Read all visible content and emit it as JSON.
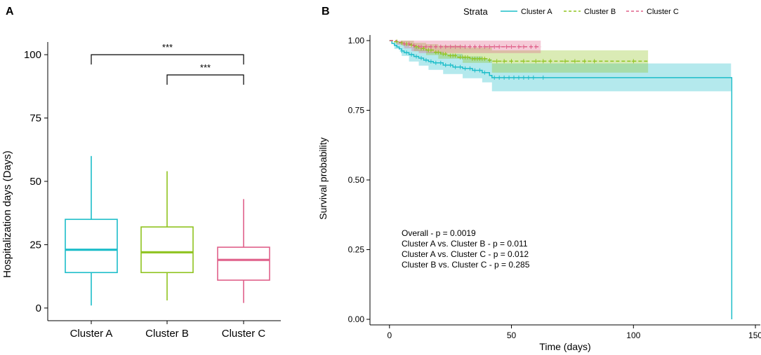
{
  "colors": {
    "a": "#1CBDC9",
    "b": "#8FC31F",
    "c": "#E0608A",
    "axis": "#000000"
  },
  "chart_data": [
    {
      "panel": "A",
      "type": "box",
      "title": "",
      "ylabel": "Hospitalization days (Days)",
      "xlabel": "",
      "ylim": [
        -5,
        105
      ],
      "yticks": [
        0,
        25,
        50,
        75,
        100
      ],
      "ytick_labels": [
        "0",
        "25",
        "50",
        "75",
        "100"
      ],
      "categories": [
        "Cluster A",
        "Cluster B",
        "Cluster C"
      ],
      "boxes": [
        {
          "name": "Cluster A",
          "min": 1,
          "q1": 14,
          "median": 23,
          "q3": 35,
          "max": 60
        },
        {
          "name": "Cluster B",
          "min": 3,
          "q1": 14,
          "median": 22,
          "q3": 32,
          "max": 54
        },
        {
          "name": "Cluster C",
          "min": 2,
          "q1": 11,
          "median": 19,
          "q3": 24,
          "max": 43
        }
      ],
      "significance": [
        {
          "from": "Cluster A",
          "to": "Cluster C",
          "y": 100,
          "label": "***"
        },
        {
          "from": "Cluster B",
          "to": "Cluster C",
          "y": 92,
          "label": "***"
        }
      ]
    },
    {
      "panel": "B",
      "type": "line",
      "subtype": "kaplan-meier",
      "xlabel": "Time (days)",
      "ylabel": "Survival probability",
      "xlim": [
        -8,
        152
      ],
      "ylim": [
        -0.02,
        1.02
      ],
      "xticks": [
        0,
        50,
        100,
        150
      ],
      "xtick_labels": [
        "0",
        "50",
        "100",
        "150"
      ],
      "yticks": [
        0,
        0.25,
        0.5,
        0.75,
        1.0
      ],
      "ytick_labels": [
        "0.00",
        "0.25",
        "0.50",
        "0.75",
        "1.00"
      ],
      "legend": {
        "title": "Strata",
        "position": "top",
        "entries": [
          "Cluster A",
          "Cluster B",
          "Cluster C"
        ]
      },
      "series": [
        {
          "name": "Cluster A",
          "line": "solid",
          "steps": [
            [
              0,
              1.0
            ],
            [
              1,
              0.99
            ],
            [
              2,
              0.983
            ],
            [
              3,
              0.977
            ],
            [
              4,
              0.97
            ],
            [
              5,
              0.963
            ],
            [
              6,
              0.957
            ],
            [
              8,
              0.95
            ],
            [
              10,
              0.943
            ],
            [
              12,
              0.937
            ],
            [
              14,
              0.93
            ],
            [
              16,
              0.925
            ],
            [
              18,
              0.92
            ],
            [
              22,
              0.912
            ],
            [
              26,
              0.905
            ],
            [
              30,
              0.9
            ],
            [
              34,
              0.893
            ],
            [
              38,
              0.885
            ],
            [
              41,
              0.875
            ],
            [
              42,
              0.867
            ],
            [
              140,
              0.867
            ],
            [
              140.3,
              0.0
            ]
          ],
          "ci_upper": [
            [
              0,
              1.0
            ],
            [
              2,
              0.995
            ],
            [
              5,
              0.985
            ],
            [
              8,
              0.978
            ],
            [
              12,
              0.968
            ],
            [
              16,
              0.96
            ],
            [
              22,
              0.952
            ],
            [
              30,
              0.943
            ],
            [
              38,
              0.933
            ],
            [
              42,
              0.918
            ],
            [
              140,
              0.918
            ]
          ],
          "ci_lower": [
            [
              0,
              1.0
            ],
            [
              2,
              0.97
            ],
            [
              5,
              0.945
            ],
            [
              8,
              0.925
            ],
            [
              12,
              0.91
            ],
            [
              16,
              0.895
            ],
            [
              22,
              0.88
            ],
            [
              30,
              0.865
            ],
            [
              38,
              0.85
            ],
            [
              42,
              0.818
            ],
            [
              140,
              0.818
            ]
          ],
          "censor_x": [
            5,
            7,
            9,
            11,
            13,
            15,
            17,
            19,
            21,
            23,
            25,
            27,
            29,
            31,
            33,
            35,
            37,
            39,
            43,
            45,
            47,
            49,
            51,
            53,
            55,
            57,
            59,
            63
          ]
        },
        {
          "name": "Cluster B",
          "line": "dashed",
          "steps": [
            [
              0,
              1.0
            ],
            [
              2,
              0.996
            ],
            [
              4,
              0.992
            ],
            [
              6,
              0.988
            ],
            [
              8,
              0.984
            ],
            [
              10,
              0.978
            ],
            [
              12,
              0.972
            ],
            [
              15,
              0.966
            ],
            [
              18,
              0.958
            ],
            [
              21,
              0.952
            ],
            [
              24,
              0.946
            ],
            [
              28,
              0.94
            ],
            [
              33,
              0.935
            ],
            [
              40,
              0.93
            ],
            [
              42,
              0.926
            ],
            [
              106,
              0.926
            ]
          ],
          "ci_upper": [
            [
              0,
              1.0
            ],
            [
              5,
              1.0
            ],
            [
              10,
              0.992
            ],
            [
              15,
              0.987
            ],
            [
              20,
              0.982
            ],
            [
              30,
              0.975
            ],
            [
              42,
              0.965
            ],
            [
              106,
              0.965
            ]
          ],
          "ci_lower": [
            [
              0,
              1.0
            ],
            [
              5,
              0.982
            ],
            [
              10,
              0.962
            ],
            [
              15,
              0.948
            ],
            [
              20,
              0.935
            ],
            [
              30,
              0.92
            ],
            [
              42,
              0.885
            ],
            [
              106,
              0.885
            ]
          ],
          "censor_x": [
            3,
            5,
            7,
            9,
            11,
            13,
            14,
            16,
            17,
            19,
            20,
            22,
            23,
            25,
            26,
            27,
            29,
            30,
            31,
            32,
            34,
            35,
            36,
            37,
            38,
            39,
            41,
            44,
            47,
            50,
            55,
            60,
            63,
            66,
            72,
            76,
            80,
            84,
            100
          ]
        },
        {
          "name": "Cluster C",
          "line": "dashed",
          "steps": [
            [
              0,
              1.0
            ],
            [
              3,
              0.994
            ],
            [
              6,
              0.988
            ],
            [
              9,
              0.982
            ],
            [
              12,
              0.978
            ],
            [
              62,
              0.978
            ]
          ],
          "ci_upper": [
            [
              0,
              1.0
            ],
            [
              62,
              1.0
            ]
          ],
          "ci_lower": [
            [
              0,
              1.0
            ],
            [
              3,
              0.985
            ],
            [
              6,
              0.972
            ],
            [
              9,
              0.962
            ],
            [
              12,
              0.955
            ],
            [
              62,
              0.955
            ]
          ],
          "censor_x": [
            6,
            8,
            10,
            13,
            15,
            17,
            19,
            21,
            23,
            25,
            27,
            29,
            31,
            33,
            35,
            37,
            39,
            41,
            43,
            45,
            48,
            50,
            53,
            55,
            58,
            60
          ]
        }
      ],
      "annotations": [
        "Overall - p = 0.0019",
        "Cluster A vs. Cluster B - p = 0.011",
        "Cluster A vs. Cluster C - p = 0.012",
        "Cluster B vs. Cluster C - p = 0.285"
      ]
    }
  ]
}
